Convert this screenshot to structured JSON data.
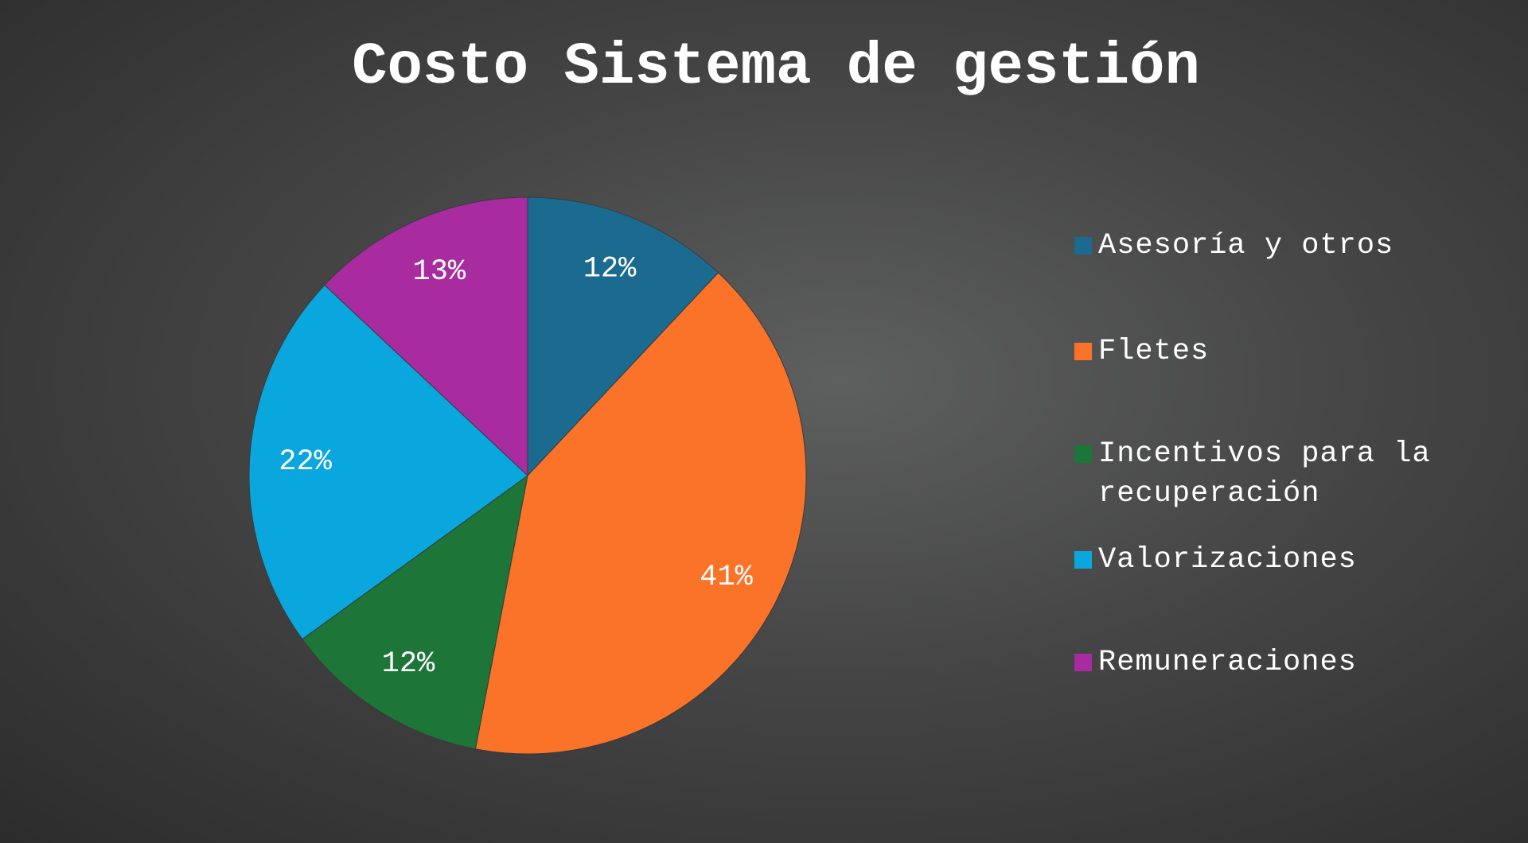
{
  "chart_data": {
    "type": "pie",
    "title": "Costo Sistema de gestión",
    "categories": [
      "Asesoría y otros",
      "Fletes",
      "Incentivos para la recuperación",
      "Valorizaciones",
      "Remuneraciones"
    ],
    "values": [
      12,
      41,
      12,
      22,
      13
    ],
    "value_labels": [
      "12%",
      "41%",
      "12%",
      "22%",
      "13%"
    ],
    "colors": [
      "#1b6a8f",
      "#fb7328",
      "#1d7538",
      "#0aa7de",
      "#a92ba0"
    ]
  }
}
